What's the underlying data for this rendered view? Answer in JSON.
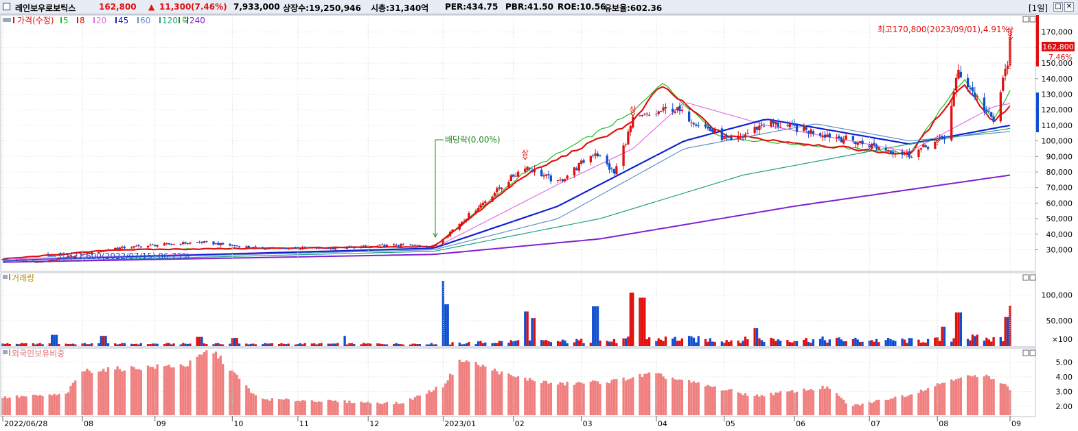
{
  "header": {
    "name": "레인보우로보틱스",
    "price": "162,800",
    "change_arrow": "▲",
    "change": "11,300",
    "change_pct": "(7.46%)",
    "volume": "7,933,000",
    "shares": "상장수:19,250,946",
    "market_cap": "시총:31,340억",
    "per": "PER:434.75",
    "pbr": "PBR:41.50",
    "roe": "ROE:10.56",
    "float_ratio": "유보율:602.36",
    "period": "[1일]",
    "btn_max": "□",
    "btn_close": "✕"
  },
  "panes": {
    "price": {
      "legend_title": "가격(수정)",
      "ma_labels": [
        "5",
        "8",
        "20",
        "45",
        "60",
        "120",
        "240"
      ],
      "ma_colors": [
        "#22bb22",
        "#e01010",
        "#e070e0",
        "#1020d0",
        "#6090c8",
        "#20a080",
        "#8020d0"
      ],
      "legend_fall": "락",
      "annotations": {
        "high": "최고170,800(2023/09/01),4.91%",
        "low": "최저21,600(2022/07/15),86.73%",
        "dividend": "배당락(0.00%)",
        "limit_up": "상"
      },
      "current_price": "162,800",
      "current_pct": "7.46%"
    },
    "volume": {
      "title": "거래량",
      "unit": "×100"
    },
    "foreign": {
      "title": "외국인보유비중"
    }
  },
  "colors": {
    "up": "#e01010",
    "down": "#1050d0",
    "foreign_bar": "#f08080",
    "grid": "#e4e4e4"
  },
  "chart_data": [
    {
      "type": "candlestick",
      "title": "가격(수정)",
      "x_ticks": [
        "2022/06/28",
        "08",
        "09",
        "10",
        "11",
        "12",
        "2023/01",
        "02",
        "03",
        "04",
        "05",
        "06",
        "07",
        "08",
        "09"
      ],
      "y_ticks": [
        30000,
        40000,
        50000,
        60000,
        70000,
        80000,
        90000,
        100000,
        110000,
        120000,
        130000,
        140000,
        150000,
        160000,
        170000
      ],
      "y_tick_labels": [
        "30,000",
        "40,000",
        "50,000",
        "60,000",
        "70,000",
        "80,000",
        "90,000",
        "100,000",
        "110,000",
        "120,000",
        "130,000",
        "140,000",
        "150,000",
        "160,000",
        "170,000"
      ],
      "ylim": [
        17000,
        180000
      ],
      "series": [
        {
          "name": "가격(수정)",
          "x": [
            "2022-06-28",
            "2022-07-15",
            "2022-08-15",
            "2022-09-20",
            "2022-10-15",
            "2022-11-15",
            "2022-12-15",
            "2022-12-29",
            "2023-01-15",
            "2023-02-06",
            "2023-02-20",
            "2023-03-08",
            "2023-03-16",
            "2023-03-24",
            "2023-04-10",
            "2023-05-05",
            "2023-05-20",
            "2023-06-15",
            "2023-07-20",
            "2023-08-04",
            "2023-08-10",
            "2023-08-25",
            "2023-08-31",
            "2023-09-01"
          ],
          "close": [
            24000,
            22000,
            31000,
            35000,
            31000,
            31000,
            33000,
            32000,
            55000,
            84000,
            73000,
            93000,
            79000,
            113000,
            121000,
            99000,
            112000,
            104000,
            91000,
            102000,
            145000,
            112000,
            151500,
            162800
          ]
        },
        {
          "name": "5",
          "x": [
            "2022-06-28",
            "2022-08-15",
            "2022-12-29",
            "2023-02-06",
            "2023-03-24",
            "2023-04-05",
            "2023-05-01",
            "2023-07-20",
            "2023-08-12",
            "2023-08-25",
            "2023-09-01"
          ],
          "values": [
            24000,
            30000,
            32000,
            80000,
            118000,
            138000,
            102000,
            92000,
            140000,
            113000,
            132000
          ]
        },
        {
          "name": "8",
          "x": [
            "2022-06-28",
            "2022-08-15",
            "2022-12-29",
            "2023-02-06",
            "2023-03-24",
            "2023-04-05",
            "2023-05-01",
            "2023-07-20",
            "2023-08-12",
            "2023-08-25",
            "2023-09-01"
          ],
          "values": [
            24000,
            30000,
            32000,
            78000,
            112000,
            136000,
            104000,
            91000,
            137000,
            112000,
            123000
          ]
        },
        {
          "name": "20",
          "x": [
            "2022-06-28",
            "2022-12-29",
            "2023-02-20",
            "2023-03-24",
            "2023-04-15",
            "2023-05-20",
            "2023-07-20",
            "2023-08-25",
            "2023-09-01"
          ],
          "values": [
            24000,
            31000,
            72000,
            95000,
            125000,
            110000,
            93000,
            122000,
            124000
          ]
        },
        {
          "name": "45",
          "x": [
            "2022-06-28",
            "2022-12-29",
            "2023-02-20",
            "2023-04-15",
            "2023-05-20",
            "2023-07-20",
            "2023-09-01"
          ],
          "values": [
            23000,
            31000,
            58000,
            100000,
            114000,
            98000,
            110000
          ]
        },
        {
          "name": "60",
          "x": [
            "2022-06-28",
            "2022-12-29",
            "2023-02-20",
            "2023-04-15",
            "2023-06-10",
            "2023-07-20",
            "2023-09-01"
          ],
          "values": [
            23000,
            30000,
            50000,
            95000,
            111000,
            100000,
            106000
          ]
        },
        {
          "name": "120",
          "x": [
            "2022-06-28",
            "2022-12-29",
            "2023-03-10",
            "2023-05-10",
            "2023-07-20",
            "2023-09-01"
          ],
          "values": [
            22000,
            29000,
            50000,
            78000,
            98000,
            108000
          ]
        },
        {
          "name": "240",
          "x": [
            "2022-06-28",
            "2022-12-29",
            "2023-03-10",
            "2023-06-01",
            "2023-09-01"
          ],
          "values": [
            22000,
            27000,
            37000,
            58000,
            78000
          ]
        }
      ]
    },
    {
      "type": "bar",
      "title": "거래량",
      "y_ticks": [
        50000,
        100000
      ],
      "y_tick_labels": [
        "50,000",
        "100,000"
      ],
      "unit": "×100",
      "ylim": [
        0,
        140000
      ],
      "series": [
        {
          "name": "거래량",
          "x": [
            "2022-07-20",
            "2022-08-10",
            "2022-09-20",
            "2022-10-05",
            "2022-11-20",
            "2023-01-02",
            "2023-01-03",
            "2023-02-06",
            "2023-02-10",
            "2023-03-08",
            "2023-03-24",
            "2023-03-28",
            "2023-05-15",
            "2023-08-04",
            "2023-08-10",
            "2023-08-31",
            "2023-09-01"
          ],
          "values": [
            22000,
            20000,
            18000,
            16000,
            20000,
            128000,
            82000,
            68000,
            55000,
            78000,
            105000,
            95000,
            35000,
            38000,
            66000,
            57000,
            79330
          ]
        }
      ]
    },
    {
      "type": "bar",
      "title": "외국인보유비중",
      "y_ticks": [
        2.0,
        3.0,
        4.0,
        5.0
      ],
      "y_tick_labels": [
        "2.00",
        "3.00",
        "4.00",
        "5.00"
      ],
      "ylim": [
        1.4,
        5.8
      ],
      "series": [
        {
          "name": "외국인보유비중",
          "x": [
            "2022-06-28",
            "2022-07-25",
            "2022-08-01",
            "2022-09-15",
            "2022-09-25",
            "2022-10-15",
            "2022-12-15",
            "2023-01-02",
            "2023-01-10",
            "2023-02-01",
            "2023-02-20",
            "2023-03-15",
            "2023-04-01",
            "2023-05-15",
            "2023-06-15",
            "2023-06-25",
            "2023-07-20",
            "2023-08-10",
            "2023-08-25",
            "2023-09-01"
          ],
          "values": [
            2.6,
            2.8,
            4.4,
            4.8,
            5.9,
            2.5,
            2.2,
            3.4,
            5.2,
            4.0,
            3.5,
            3.7,
            4.2,
            2.7,
            3.3,
            2.0,
            2.8,
            4.0,
            4.0,
            3.2
          ]
        }
      ]
    }
  ]
}
